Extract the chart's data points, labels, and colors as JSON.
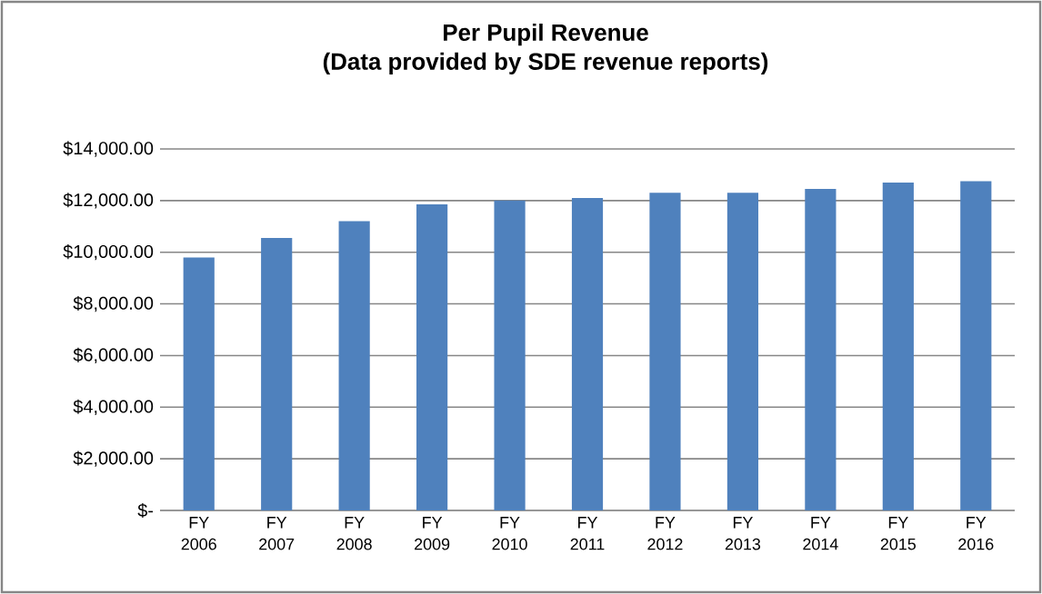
{
  "chart_data": {
    "type": "bar",
    "title": "Per Pupil Revenue",
    "subtitle": "(Data provided by SDE revenue reports)",
    "categories": [
      "FY 2006",
      "FY 2007",
      "FY 2008",
      "FY 2009",
      "FY 2010",
      "FY 2011",
      "FY 2012",
      "FY 2013",
      "FY 2014",
      "FY 2015",
      "FY 2016"
    ],
    "values": [
      9800,
      10550,
      11200,
      11850,
      12000,
      12100,
      12300,
      12300,
      12450,
      12700,
      12750
    ],
    "color": "#4f81bd",
    "ylim": [
      0,
      14000
    ],
    "yticks": [
      {
        "value": 0,
        "label": "$-"
      },
      {
        "value": 2000,
        "label": "$2,000.00"
      },
      {
        "value": 4000,
        "label": "$4,000.00"
      },
      {
        "value": 6000,
        "label": "$6,000.00"
      },
      {
        "value": 8000,
        "label": "$8,000.00"
      },
      {
        "value": 10000,
        "label": "$10,000.00"
      },
      {
        "value": 12000,
        "label": "$12,000.00"
      },
      {
        "value": 14000,
        "label": "$14,000.00"
      }
    ],
    "grid": "y"
  }
}
